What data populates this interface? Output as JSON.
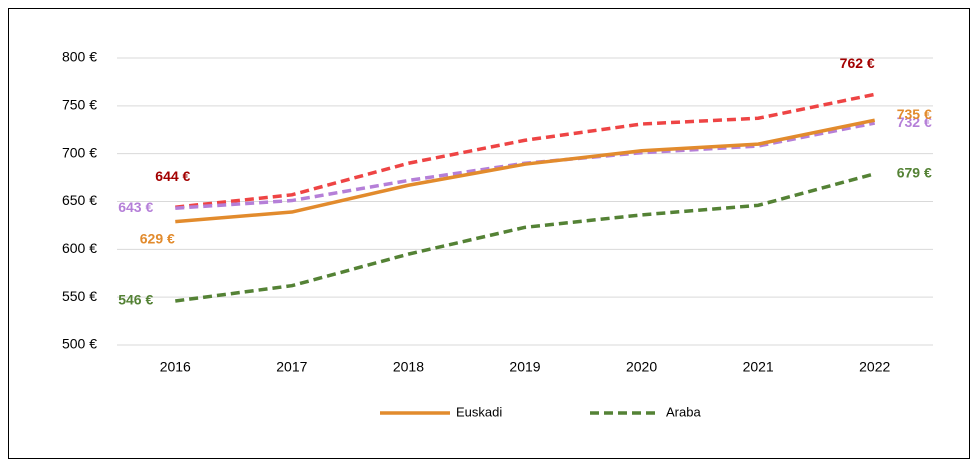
{
  "chart_data": {
    "type": "line",
    "categories": [
      "2016",
      "2017",
      "2018",
      "2019",
      "2020",
      "2021",
      "2022"
    ],
    "series": [
      {
        "color": "#ee4444",
        "label_color": "#a30000",
        "dashed": true,
        "values": [
          644,
          657,
          690,
          714,
          731,
          737,
          762
        ],
        "value_labels": [
          "644 €",
          null,
          null,
          null,
          null,
          null,
          "762 €"
        ]
      },
      {
        "color": "#b57fd8",
        "label_color": "#b57fd8",
        "dashed": true,
        "values": [
          643,
          651,
          672,
          690,
          701,
          708,
          732
        ],
        "value_labels": [
          "643 €",
          null,
          null,
          null,
          null,
          null,
          "732 €"
        ]
      },
      {
        "name": "Euskadi",
        "color": "#e28b2d",
        "label_color": "#e28b2d",
        "dashed": false,
        "values": [
          629,
          639,
          667,
          689,
          703,
          710,
          735
        ],
        "value_labels": [
          "629 €",
          null,
          null,
          null,
          null,
          null,
          "735 €"
        ]
      },
      {
        "name": "Araba",
        "color": "#548235",
        "label_color": "#548235",
        "dashed": true,
        "values": [
          546,
          562,
          595,
          623,
          636,
          646,
          679
        ],
        "value_labels": [
          "546 €",
          null,
          null,
          null,
          null,
          null,
          "679 €"
        ]
      }
    ],
    "ylim": [
      500,
      800
    ],
    "yticks": [
      {
        "value": 500,
        "label": "500 €"
      },
      {
        "value": 550,
        "label": "550 €"
      },
      {
        "value": 600,
        "label": "600 €"
      },
      {
        "value": 650,
        "label": "650 €"
      },
      {
        "value": 700,
        "label": "700 €"
      },
      {
        "value": 750,
        "label": "750 €"
      },
      {
        "value": 800,
        "label": "800 €"
      }
    ],
    "grid": true
  }
}
